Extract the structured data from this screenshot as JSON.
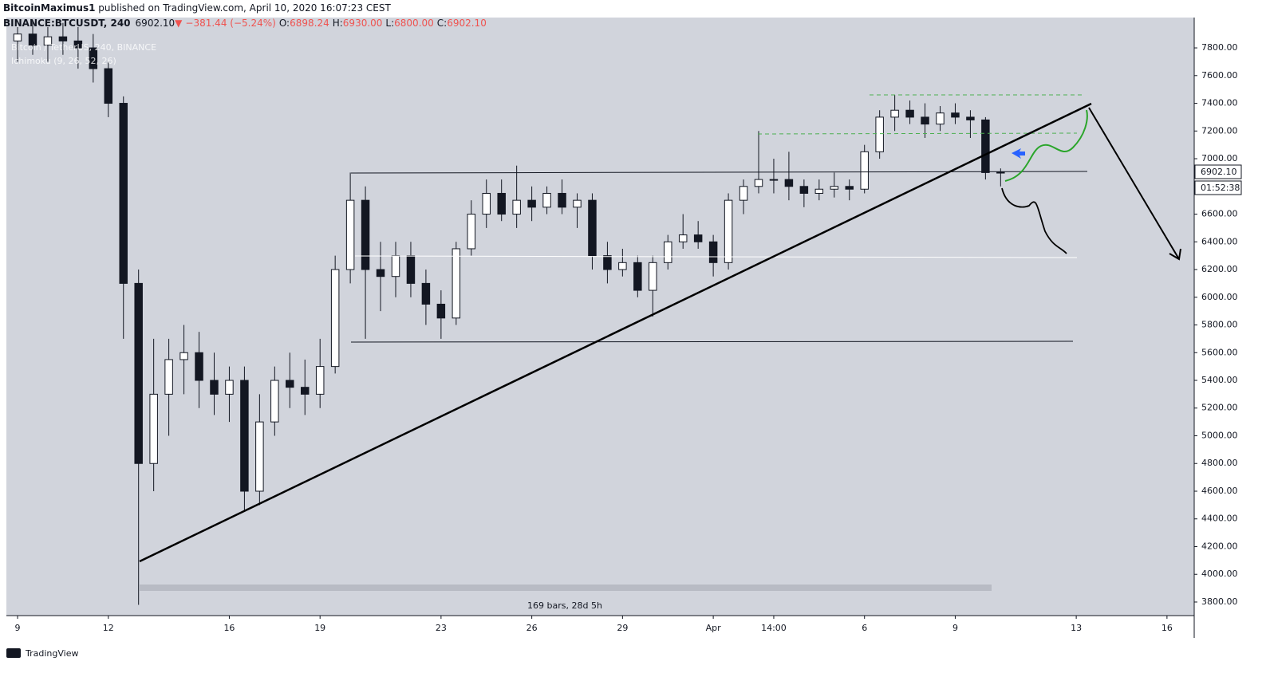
{
  "header": {
    "author": "BitcoinMaximus1",
    "published": " published on TradingView.com, April 10, 2020 16:07:23 CEST",
    "symbol": "BINANCE:BTCUSDT, 240",
    "last": "6902.10",
    "arrow": "▼",
    "change": "−381.44 (−5.24%)",
    "o_label": "O:",
    "o": "6898.24",
    "h_label": "H:",
    "h": "6930.00",
    "l_label": "L:",
    "l": "6800.00",
    "c_label": "C:",
    "c": "6902.10"
  },
  "chart_data": {
    "type": "candlestick",
    "legend": [
      "Bitcoin / TetherUS, 240, BINANCE",
      "Ichimoku (9, 26, 52, 26)"
    ],
    "x": [
      0,
      0.5,
      1,
      1.5,
      2,
      2.5,
      3,
      3.5,
      4,
      4.5,
      5,
      5.5,
      6,
      6.5,
      7,
      7.5,
      8,
      8.5,
      9,
      9.5,
      10,
      10.5,
      11,
      11.5,
      12,
      12.5,
      13,
      13.5,
      14,
      14.5,
      15,
      15.5,
      16,
      16.5,
      17,
      17.5,
      18,
      18.5,
      19,
      19.5,
      20,
      20.5,
      21,
      21.5,
      22,
      22.5,
      23,
      23.5,
      24,
      24.5,
      25,
      25.5,
      26,
      26.5,
      27,
      27.5,
      28,
      28.5,
      29,
      29.5,
      30,
      30.5,
      31,
      31.5,
      32,
      32.5
    ],
    "open": [
      7850,
      7900,
      7820,
      7880,
      7850,
      7800,
      7650,
      7400,
      6100,
      4800,
      5300,
      5550,
      5600,
      5400,
      5300,
      5400,
      4600,
      5100,
      5400,
      5350,
      5300,
      5500,
      6200,
      6700,
      6200,
      6150,
      6300,
      6100,
      5950,
      5850,
      6350,
      6600,
      6750,
      6600,
      6700,
      6650,
      6750,
      6650,
      6700,
      6300,
      6200,
      6250,
      6050,
      6250,
      6400,
      6450,
      6400,
      6250,
      6700,
      6800,
      6850,
      6850,
      6800,
      6750,
      6780,
      6800,
      6780,
      7050,
      7300,
      7350,
      7300,
      7250,
      7330,
      7300,
      7280,
      6900
    ],
    "high": [
      7950,
      8000,
      7950,
      7980,
      7950,
      7900,
      7700,
      7450,
      6200,
      5700,
      5700,
      5800,
      5750,
      5600,
      5500,
      5500,
      5300,
      5500,
      5600,
      5550,
      5700,
      6300,
      6900,
      6800,
      6400,
      6400,
      6400,
      6200,
      6050,
      6400,
      6700,
      6850,
      6850,
      6950,
      6800,
      6800,
      6850,
      6750,
      6750,
      6400,
      6350,
      6300,
      6300,
      6450,
      6600,
      6550,
      6450,
      6750,
      6850,
      7200,
      7000,
      7050,
      6850,
      6850,
      6900,
      6850,
      7100,
      7350,
      7460,
      7420,
      7400,
      7380,
      7400,
      7350,
      7300,
      6930
    ],
    "low": [
      7700,
      7750,
      7700,
      7750,
      7650,
      7550,
      7300,
      5700,
      3780,
      4600,
      5000,
      5300,
      5200,
      5150,
      5100,
      4450,
      4500,
      5000,
      5200,
      5150,
      5200,
      5450,
      6100,
      5700,
      5900,
      6000,
      6000,
      5800,
      5700,
      5800,
      6300,
      6500,
      6550,
      6500,
      6550,
      6600,
      6600,
      6500,
      6200,
      6100,
      6150,
      6000,
      5860,
      6200,
      6350,
      6350,
      6150,
      6200,
      6600,
      6750,
      6750,
      6700,
      6650,
      6700,
      6720,
      6700,
      6750,
      7000,
      7200,
      7250,
      7150,
      7200,
      7250,
      7150,
      6850,
      6800
    ],
    "close": [
      7900,
      7820,
      7880,
      7850,
      7800,
      7650,
      7400,
      6100,
      4800,
      5300,
      5550,
      5600,
      5400,
      5300,
      5400,
      4600,
      5100,
      5400,
      5350,
      5300,
      5500,
      6200,
      6700,
      6200,
      6150,
      6300,
      6100,
      5950,
      5850,
      6350,
      6600,
      6750,
      6600,
      6700,
      6650,
      6750,
      6650,
      6700,
      6300,
      6200,
      6250,
      6050,
      6250,
      6400,
      6450,
      6400,
      6250,
      6700,
      6800,
      6850,
      6850,
      6800,
      6750,
      6780,
      6800,
      6780,
      7050,
      7300,
      7350,
      7300,
      7250,
      7330,
      7300,
      7280,
      6900,
      6902.1
    ],
    "up_color": "#ffffff",
    "down_color": "#131722",
    "xlim": [
      -0.37,
      38.9
    ],
    "xticks": [
      {
        "value": 0,
        "label": "9"
      },
      {
        "value": 3,
        "label": "12"
      },
      {
        "value": 7,
        "label": "16"
      },
      {
        "value": 10,
        "label": "19"
      },
      {
        "value": 14,
        "label": "23"
      },
      {
        "value": 17,
        "label": "26"
      },
      {
        "value": 20,
        "label": "29"
      },
      {
        "value": 23,
        "label": "Apr"
      },
      {
        "value": 25,
        "label": "14:00"
      },
      {
        "value": 28,
        "label": "6"
      },
      {
        "value": 31,
        "label": "9"
      },
      {
        "value": 35,
        "label": "13"
      },
      {
        "value": 38,
        "label": "16"
      }
    ],
    "ylim": [
      3702,
      8019
    ],
    "yticks": [
      {
        "value": 3800,
        "label": "3800.00"
      },
      {
        "value": 4000,
        "label": "4000.00"
      },
      {
        "value": 4200,
        "label": "4200.00"
      },
      {
        "value": 4400,
        "label": "4400.00"
      },
      {
        "value": 4600,
        "label": "4600.00"
      },
      {
        "value": 4800,
        "label": "4800.00"
      },
      {
        "value": 5000,
        "label": "5000.00"
      },
      {
        "value": 5200,
        "label": "5200.00"
      },
      {
        "value": 5400,
        "label": "5400.00"
      },
      {
        "value": 5600,
        "label": "5600.00"
      },
      {
        "value": 5800,
        "label": "5800.00"
      },
      {
        "value": 6000,
        "label": "6000.00"
      },
      {
        "value": 6200,
        "label": "6200.00"
      },
      {
        "value": 6400,
        "label": "6400.00"
      },
      {
        "value": 6600,
        "label": "6600.00"
      },
      {
        "value": 6800,
        "label": "6800.00"
      },
      {
        "value": 7000,
        "label": "7000.00"
      },
      {
        "value": 7200,
        "label": "7200.00"
      },
      {
        "value": 7400,
        "label": "7400.00"
      },
      {
        "value": 7600,
        "label": "7600.00"
      },
      {
        "value": 7800,
        "label": "7800.00"
      }
    ],
    "price_label": "6902.10",
    "countdown": "01:52:38",
    "range_label": "169 bars, 28d 5h"
  },
  "footer": {
    "brand": "TradingView"
  }
}
